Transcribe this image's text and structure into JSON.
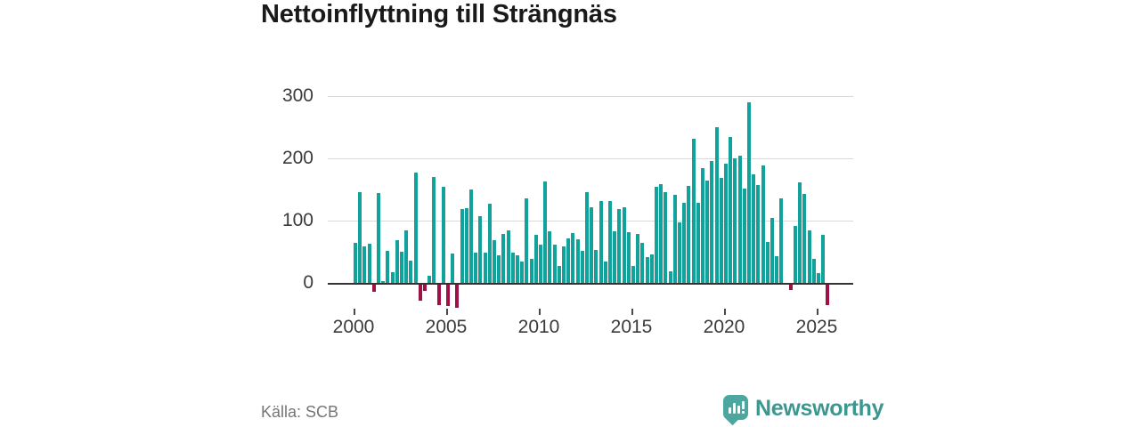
{
  "header": {
    "title": "Nettoinflyttning till Strängnäs"
  },
  "footer": {
    "source_label": "Källa: SCB",
    "brand_name": "Newsworthy"
  },
  "icons": {
    "brand_logo": "newsworthy-bubble-chart-icon"
  },
  "colors": {
    "positive_bar": "#11a39b",
    "negative_bar": "#9e1046",
    "gridline": "#d9d9d9",
    "axis_line": "#333333",
    "brand_teal": "#4ba79f"
  },
  "chart_data": {
    "type": "bar",
    "title": "Nettoinflyttning till Strängnäs",
    "xlabel": "",
    "ylabel": "",
    "frequency": "quarterly",
    "start_quarter": "2000 Q1",
    "end_quarter": "2025 Q3",
    "ylim": [
      -50,
      310
    ],
    "y_ticks": [
      300,
      200,
      100,
      0
    ],
    "x_ticks": [
      2000,
      2005,
      2010,
      2015,
      2020,
      2025
    ],
    "grid": "horizontal",
    "legend": "none",
    "series": [
      {
        "year": 2000,
        "values": [
          65,
          146,
          58,
          63
        ]
      },
      {
        "year": 2001,
        "values": [
          -11,
          144,
          3,
          52
        ]
      },
      {
        "year": 2002,
        "values": [
          17,
          68,
          50,
          84
        ]
      },
      {
        "year": 2003,
        "values": [
          36,
          177,
          -25,
          -10
        ]
      },
      {
        "year": 2004,
        "values": [
          11,
          170,
          -33,
          155
        ]
      },
      {
        "year": 2005,
        "values": [
          -34,
          47,
          -37,
          119
        ]
      },
      {
        "year": 2006,
        "values": [
          120,
          150,
          48,
          107
        ]
      },
      {
        "year": 2007,
        "values": [
          49,
          127,
          68,
          45
        ]
      },
      {
        "year": 2008,
        "values": [
          78,
          85,
          48,
          45
        ]
      },
      {
        "year": 2009,
        "values": [
          34,
          136,
          39,
          77
        ]
      },
      {
        "year": 2010,
        "values": [
          61,
          163,
          83,
          61
        ]
      },
      {
        "year": 2011,
        "values": [
          27,
          58,
          72,
          80
        ]
      },
      {
        "year": 2012,
        "values": [
          70,
          52,
          146,
          121
        ]
      },
      {
        "year": 2013,
        "values": [
          53,
          132,
          35,
          132
        ]
      },
      {
        "year": 2014,
        "values": [
          83,
          118,
          122,
          81
        ]
      },
      {
        "year": 2015,
        "values": [
          27,
          78,
          64,
          42
        ]
      },
      {
        "year": 2016,
        "values": [
          46,
          155,
          158,
          146
        ]
      },
      {
        "year": 2017,
        "values": [
          19,
          142,
          97,
          128
        ]
      },
      {
        "year": 2018,
        "values": [
          156,
          231,
          129,
          184
        ]
      },
      {
        "year": 2019,
        "values": [
          164,
          196,
          250,
          169
        ]
      },
      {
        "year": 2020,
        "values": [
          192,
          235,
          200,
          204
        ]
      },
      {
        "year": 2021,
        "values": [
          151,
          290,
          174,
          157
        ]
      },
      {
        "year": 2022,
        "values": [
          188,
          66,
          105,
          43
        ]
      },
      {
        "year": 2023,
        "values": [
          136,
          0,
          -8,
          91
        ]
      },
      {
        "year": 2024,
        "values": [
          162,
          143,
          85,
          39
        ]
      },
      {
        "year": 2025,
        "values": [
          16,
          77,
          -33
        ]
      }
    ]
  }
}
